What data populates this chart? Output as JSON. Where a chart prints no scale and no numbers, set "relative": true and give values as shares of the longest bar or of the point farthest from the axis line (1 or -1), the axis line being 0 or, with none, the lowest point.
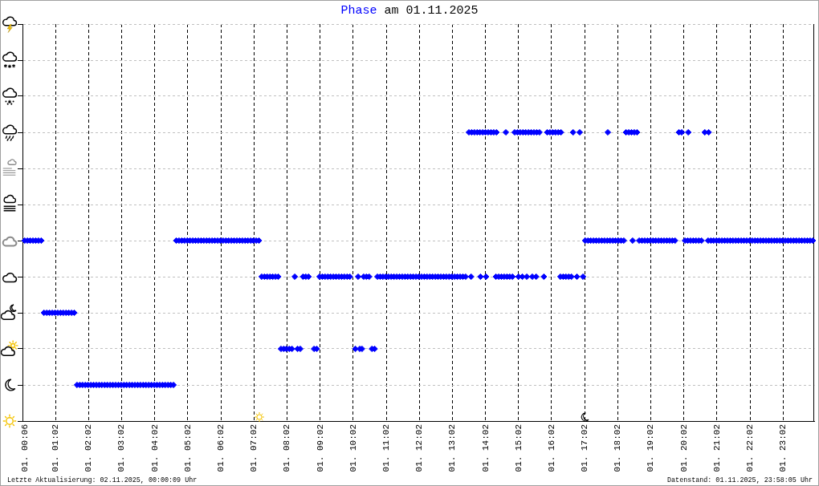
{
  "chart_data": {
    "type": "scatter",
    "title": "am 01.11.2025",
    "annotations": [
      "Letzte Aktualisierung: 02.11.2025, 00:00:09 Uhr",
      "Datenstand: 01.11.2025, 23:58:05 Uhr"
    ],
    "series": [
      {
        "name": "Phase",
        "color": "#0000ff",
        "x": [
          "2025-11-01T00:06",
          "2025-11-01T00:11",
          "2025-11-01T00:16",
          "2025-11-01T00:21",
          "2025-11-01T00:26",
          "2025-11-01T00:31",
          "2025-11-01T00:36",
          "2025-11-01T00:41",
          "2025-11-01T00:46",
          "2025-11-01T00:51",
          "2025-11-01T00:56",
          "2025-11-01T01:01",
          "2025-11-01T01:06",
          "2025-11-01T01:11",
          "2025-11-01T01:16",
          "2025-11-01T01:21",
          "2025-11-01T01:26",
          "2025-11-01T01:31",
          "2025-11-01T01:36",
          "2025-11-01T01:41",
          "2025-11-01T01:46",
          "2025-11-01T01:51",
          "2025-11-01T01:56",
          "2025-11-01T02:01",
          "2025-11-01T02:06",
          "2025-11-01T02:11",
          "2025-11-01T02:16",
          "2025-11-01T02:21",
          "2025-11-01T02:26",
          "2025-11-01T02:31",
          "2025-11-01T02:36",
          "2025-11-01T02:41",
          "2025-11-01T02:46",
          "2025-11-01T02:51",
          "2025-11-01T02:56",
          "2025-11-01T03:01",
          "2025-11-01T03:06",
          "2025-11-01T03:11",
          "2025-11-01T03:16",
          "2025-11-01T03:21",
          "2025-11-01T03:26",
          "2025-11-01T03:31",
          "2025-11-01T03:36",
          "2025-11-01T03:41",
          "2025-11-01T03:46",
          "2025-11-01T03:51",
          "2025-11-01T03:56",
          "2025-11-01T04:01",
          "2025-11-01T04:06",
          "2025-11-01T04:11",
          "2025-11-01T04:16",
          "2025-11-01T04:21",
          "2025-11-01T04:26",
          "2025-11-01T04:31",
          "2025-11-01T04:36",
          "2025-11-01T04:41",
          "2025-11-01T04:46",
          "2025-11-01T04:51",
          "2025-11-01T04:56",
          "2025-11-01T05:01",
          "2025-11-01T05:06",
          "2025-11-01T05:11",
          "2025-11-01T05:16",
          "2025-11-01T05:21",
          "2025-11-01T05:26",
          "2025-11-01T05:31",
          "2025-11-01T05:36",
          "2025-11-01T05:41",
          "2025-11-01T05:46",
          "2025-11-01T05:51",
          "2025-11-01T05:56",
          "2025-11-01T06:01",
          "2025-11-01T06:06",
          "2025-11-01T06:11",
          "2025-11-01T06:16",
          "2025-11-01T06:21",
          "2025-11-01T06:26",
          "2025-11-01T06:31",
          "2025-11-01T06:36",
          "2025-11-01T06:41",
          "2025-11-01T06:46",
          "2025-11-01T06:51",
          "2025-11-01T06:56",
          "2025-11-01T07:01",
          "2025-11-01T07:06",
          "2025-11-01T07:11",
          "2025-11-01T07:16",
          "2025-11-01T07:21",
          "2025-11-01T07:26",
          "2025-11-01T07:31",
          "2025-11-01T07:36",
          "2025-11-01T07:41",
          "2025-11-01T07:46",
          "2025-11-01T07:51",
          "2025-11-01T07:56",
          "2025-11-01T08:01",
          "2025-11-01T08:06",
          "2025-11-01T08:11",
          "2025-11-01T08:16",
          "2025-11-01T08:21",
          "2025-11-01T08:26",
          "2025-11-01T08:31",
          "2025-11-01T08:36",
          "2025-11-01T08:41",
          "2025-11-01T08:51",
          "2025-11-01T08:56",
          "2025-11-01T09:01",
          "2025-11-01T09:06",
          "2025-11-01T09:11",
          "2025-11-01T09:16",
          "2025-11-01T09:21",
          "2025-11-01T09:26",
          "2025-11-01T09:31",
          "2025-11-01T09:36",
          "2025-11-01T09:41",
          "2025-11-01T09:46",
          "2025-11-01T09:51",
          "2025-11-01T09:56",
          "2025-11-01T10:06",
          "2025-11-01T10:11",
          "2025-11-01T10:14",
          "2025-11-01T10:18",
          "2025-11-01T10:21",
          "2025-11-01T10:26",
          "2025-11-01T10:31",
          "2025-11-01T10:36",
          "2025-11-01T10:41",
          "2025-11-01T10:46",
          "2025-11-01T10:51",
          "2025-11-01T10:56",
          "2025-11-01T11:01",
          "2025-11-01T11:06",
          "2025-11-01T11:11",
          "2025-11-01T11:16",
          "2025-11-01T11:21",
          "2025-11-01T11:26",
          "2025-11-01T11:31",
          "2025-11-01T11:36",
          "2025-11-01T11:41",
          "2025-11-01T11:46",
          "2025-11-01T11:51",
          "2025-11-01T11:56",
          "2025-11-01T12:01",
          "2025-11-01T12:06",
          "2025-11-01T12:11",
          "2025-11-01T12:16",
          "2025-11-01T12:21",
          "2025-11-01T12:26",
          "2025-11-01T12:31",
          "2025-11-01T12:36",
          "2025-11-01T12:41",
          "2025-11-01T12:46",
          "2025-11-01T12:51",
          "2025-11-01T12:56",
          "2025-11-01T13:01",
          "2025-11-01T13:06",
          "2025-11-01T13:11",
          "2025-11-01T13:16",
          "2025-11-01T13:21",
          "2025-11-01T13:26",
          "2025-11-01T13:32",
          "2025-11-01T13:36",
          "2025-11-01T13:37",
          "2025-11-01T13:42",
          "2025-11-01T13:47",
          "2025-11-01T13:52",
          "2025-11-01T13:53",
          "2025-11-01T13:57",
          "2025-11-01T14:02",
          "2025-11-01T14:03",
          "2025-11-01T14:07",
          "2025-11-01T14:12",
          "2025-11-01T14:17",
          "2025-11-01T14:21",
          "2025-11-01T14:22",
          "2025-11-01T14:26",
          "2025-11-01T14:31",
          "2025-11-01T14:36",
          "2025-11-01T14:39",
          "2025-11-01T14:41",
          "2025-11-01T14:46",
          "2025-11-01T14:51",
          "2025-11-01T14:55",
          "2025-11-01T15:00",
          "2025-11-01T15:02",
          "2025-11-01T15:05",
          "2025-11-01T15:09",
          "2025-11-01T15:10",
          "2025-11-01T15:15",
          "2025-11-01T15:17",
          "2025-11-01T15:20",
          "2025-11-01T15:25",
          "2025-11-01T15:27",
          "2025-11-01T15:30",
          "2025-11-01T15:34",
          "2025-11-01T15:35",
          "2025-11-01T15:40",
          "2025-11-01T15:48",
          "2025-11-01T15:54",
          "2025-11-01T15:59",
          "2025-11-01T16:04",
          "2025-11-01T16:09",
          "2025-11-01T16:14",
          "2025-11-01T16:18",
          "2025-11-01T16:19",
          "2025-11-01T16:23",
          "2025-11-01T16:28",
          "2025-11-01T16:33",
          "2025-11-01T16:38",
          "2025-11-01T16:41",
          "2025-11-01T16:48",
          "2025-11-01T16:53",
          "2025-11-01T16:59",
          "2025-11-01T17:03",
          "2025-11-01T17:08",
          "2025-11-01T17:13",
          "2025-11-01T17:18",
          "2025-11-01T17:23",
          "2025-11-01T17:28",
          "2025-11-01T17:33",
          "2025-11-01T17:38",
          "2025-11-01T17:43",
          "2025-11-01T17:44",
          "2025-11-01T17:48",
          "2025-11-01T17:53",
          "2025-11-01T17:58",
          "2025-11-01T18:03",
          "2025-11-01T18:08",
          "2025-11-01T18:13",
          "2025-11-01T18:17",
          "2025-11-01T18:22",
          "2025-11-01T18:27",
          "2025-11-01T18:29",
          "2025-11-01T18:32",
          "2025-11-01T18:37",
          "2025-11-01T18:41",
          "2025-11-01T18:46",
          "2025-11-01T18:51",
          "2025-11-01T18:56",
          "2025-11-01T19:01",
          "2025-11-01T19:06",
          "2025-11-01T19:11",
          "2025-11-01T19:16",
          "2025-11-01T19:21",
          "2025-11-01T19:26",
          "2025-11-01T19:31",
          "2025-11-01T19:36",
          "2025-11-01T19:41",
          "2025-11-01T19:46",
          "2025-11-01T19:53",
          "2025-11-01T19:58",
          "2025-11-01T20:04",
          "2025-11-01T20:09",
          "2025-11-01T20:10",
          "2025-11-01T20:14",
          "2025-11-01T20:19",
          "2025-11-01T20:24",
          "2025-11-01T20:29",
          "2025-11-01T20:34",
          "2025-11-01T20:40",
          "2025-11-01T20:46",
          "2025-11-01T20:47",
          "2025-11-01T20:51",
          "2025-11-01T20:56",
          "2025-11-01T21:01",
          "2025-11-01T21:06",
          "2025-11-01T21:11",
          "2025-11-01T21:16",
          "2025-11-01T21:21",
          "2025-11-01T21:26",
          "2025-11-01T21:31",
          "2025-11-01T21:36",
          "2025-11-01T21:41",
          "2025-11-01T21:46",
          "2025-11-01T21:51",
          "2025-11-01T21:56",
          "2025-11-01T22:01",
          "2025-11-01T22:06",
          "2025-11-01T22:11",
          "2025-11-01T22:16",
          "2025-11-01T22:21",
          "2025-11-01T22:26",
          "2025-11-01T22:31",
          "2025-11-01T22:36",
          "2025-11-01T22:41",
          "2025-11-01T22:46",
          "2025-11-01T22:51",
          "2025-11-01T22:56",
          "2025-11-01T23:01",
          "2025-11-01T23:06",
          "2025-11-01T23:11",
          "2025-11-01T23:16",
          "2025-11-01T23:21",
          "2025-11-01T23:26",
          "2025-11-01T23:31",
          "2025-11-01T23:36",
          "2025-11-01T23:41",
          "2025-11-01T23:46",
          "2025-11-01T23:51",
          "2025-11-01T23:56"
        ],
        "values": [
          0.625,
          0.625,
          0.625,
          0.625,
          0.625,
          0.625,
          0.625,
          0.375,
          0.375,
          0.375,
          0.375,
          0.375,
          0.375,
          0.375,
          0.375,
          0.375,
          0.375,
          0.375,
          0.375,
          0.125,
          0.125,
          0.125,
          0.125,
          0.125,
          0.125,
          0.125,
          0.125,
          0.125,
          0.125,
          0.125,
          0.125,
          0.125,
          0.125,
          0.125,
          0.125,
          0.125,
          0.125,
          0.125,
          0.125,
          0.125,
          0.125,
          0.125,
          0.125,
          0.125,
          0.125,
          0.125,
          0.125,
          0.125,
          0.125,
          0.125,
          0.125,
          0.125,
          0.125,
          0.125,
          0.125,
          0.625,
          0.625,
          0.625,
          0.625,
          0.625,
          0.625,
          0.625,
          0.625,
          0.625,
          0.625,
          0.625,
          0.625,
          0.625,
          0.625,
          0.625,
          0.625,
          0.625,
          0.625,
          0.625,
          0.625,
          0.625,
          0.625,
          0.625,
          0.625,
          0.625,
          0.625,
          0.625,
          0.625,
          0.625,
          0.625,
          0.625,
          0.5,
          0.5,
          0.5,
          0.5,
          0.5,
          0.5,
          0.5,
          0.25,
          0.25,
          0.25,
          0.25,
          0.25,
          0.5,
          0.25,
          0.25,
          0.5,
          0.5,
          0.5,
          0.25,
          0.25,
          0.5,
          0.5,
          0.5,
          0.5,
          0.5,
          0.5,
          0.5,
          0.5,
          0.5,
          0.5,
          0.5,
          0.5,
          0.25,
          0.5,
          0.25,
          0.25,
          0.5,
          0.5,
          0.5,
          0.25,
          0.25,
          0.5,
          0.5,
          0.5,
          0.5,
          0.5,
          0.5,
          0.5,
          0.5,
          0.5,
          0.5,
          0.5,
          0.5,
          0.5,
          0.5,
          0.5,
          0.5,
          0.5,
          0.5,
          0.5,
          0.5,
          0.5,
          0.5,
          0.5,
          0.5,
          0.5,
          0.5,
          0.5,
          0.5,
          0.5,
          0.5,
          0.5,
          0.5,
          0.5,
          1,
          0.5,
          1,
          1,
          1,
          1,
          0.5,
          1,
          1,
          0.5,
          1,
          1,
          1,
          0.5,
          1,
          0.5,
          0.5,
          0.5,
          1,
          0.5,
          0.5,
          0.5,
          1,
          1,
          0.5,
          1,
          0.5,
          1,
          1,
          0.5,
          1,
          1,
          0.5,
          1,
          0.5,
          1,
          1,
          0.5,
          1,
          1,
          1,
          1,
          1,
          0.5,
          1,
          0.5,
          0.5,
          0.5,
          0.5,
          1,
          0.5,
          1,
          0.5,
          0.625,
          0.625,
          0.625,
          0.625,
          0.625,
          0.625,
          0.625,
          0.625,
          0.625,
          1,
          0.625,
          0.625,
          0.625,
          0.625,
          0.625,
          0.625,
          1,
          1,
          1,
          0.625,
          1,
          1,
          0.625,
          0.625,
          0.625,
          0.625,
          0.625,
          0.625,
          0.625,
          0.625,
          0.625,
          0.625,
          0.625,
          0.625,
          0.625,
          0.625,
          1,
          1,
          0.625,
          0.625,
          1,
          0.625,
          0.625,
          0.625,
          0.625,
          0.625,
          1,
          0.625,
          1,
          0.625,
          0.625,
          0.625,
          0.625,
          0.625,
          0.625,
          0.625,
          0.625,
          0.625,
          0.625,
          0.625,
          0.625,
          0.625,
          0.625,
          0.625,
          0.625,
          0.625,
          0.625,
          0.625,
          0.625,
          0.625,
          0.625,
          0.625,
          0.625,
          0.625,
          0.625,
          0.625,
          0.625,
          0.625,
          0.625,
          0.625,
          0.625,
          0.625,
          0.625,
          0.625,
          0.625,
          0.625,
          0.625
        ]
      }
    ],
    "relative": true,
    "xlim": [
      "2025-11-01T00:02",
      "2025-11-01T23:59"
    ],
    "xticks": [
      {
        "value": "2025-11-01T00:06",
        "label": "01. 00:06"
      },
      {
        "value": "2025-11-01T01:02",
        "label": "01. 01:02"
      },
      {
        "value": "2025-11-01T02:02",
        "label": "01. 02:02"
      },
      {
        "value": "2025-11-01T03:02",
        "label": "01. 03:02"
      },
      {
        "value": "2025-11-01T04:02",
        "label": "01. 04:02"
      },
      {
        "value": "2025-11-01T05:02",
        "label": "01. 05:02"
      },
      {
        "value": "2025-11-01T06:02",
        "label": "01. 06:02"
      },
      {
        "value": "2025-11-01T07:02",
        "label": "01. 07:02"
      },
      {
        "value": "2025-11-01T08:02",
        "label": "01. 08:02"
      },
      {
        "value": "2025-11-01T09:02",
        "label": "01. 09:02"
      },
      {
        "value": "2025-11-01T10:02",
        "label": "01. 10:02"
      },
      {
        "value": "2025-11-01T11:02",
        "label": "01. 11:02"
      },
      {
        "value": "2025-11-01T12:02",
        "label": "01. 12:02"
      },
      {
        "value": "2025-11-01T13:02",
        "label": "01. 13:02"
      },
      {
        "value": "2025-11-01T14:02",
        "label": "01. 14:02"
      },
      {
        "value": "2025-11-01T15:02",
        "label": "01. 15:02"
      },
      {
        "value": "2025-11-01T16:02",
        "label": "01. 16:02"
      },
      {
        "value": "2025-11-01T17:02",
        "label": "01. 17:02"
      },
      {
        "value": "2025-11-01T18:02",
        "label": "01. 18:02"
      },
      {
        "value": "2025-11-01T19:02",
        "label": "01. 19:02"
      },
      {
        "value": "2025-11-01T20:02",
        "label": "01. 20:02"
      },
      {
        "value": "2025-11-01T21:02",
        "label": "01. 21:02"
      },
      {
        "value": "2025-11-01T22:02",
        "label": "01. 22:02"
      },
      {
        "value": "2025-11-01T23:02",
        "label": "01. 23:02"
      }
    ],
    "tick_labels": "x",
    "grid": true,
    "marker": "diamond"
  }
}
